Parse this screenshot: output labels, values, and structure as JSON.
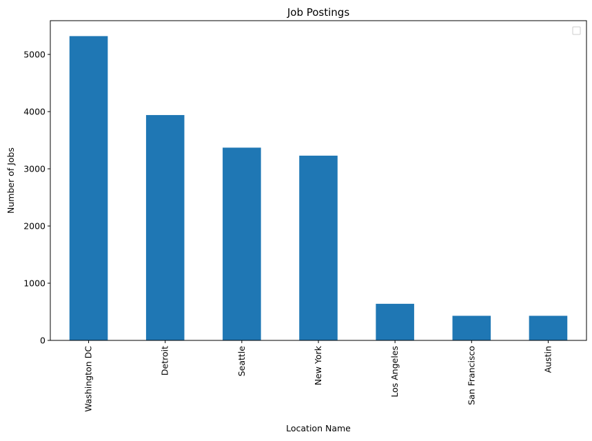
{
  "chart_data": {
    "type": "bar",
    "title": "Job Postings",
    "xlabel": "Location Name",
    "ylabel": "Number of Jobs",
    "categories": [
      "Washington DC",
      "Detroit",
      "Seattle",
      "New York",
      "Los Angeles",
      "San Francisco",
      "Austin"
    ],
    "values": [
      5320,
      3940,
      3370,
      3230,
      640,
      430,
      430
    ],
    "yticks": [
      0,
      1000,
      2000,
      3000,
      4000,
      5000
    ],
    "ylim": [
      0,
      5590
    ],
    "bar_color": "#1f77b4",
    "grid": false,
    "legend": {
      "position": "top-right",
      "entries": []
    }
  }
}
